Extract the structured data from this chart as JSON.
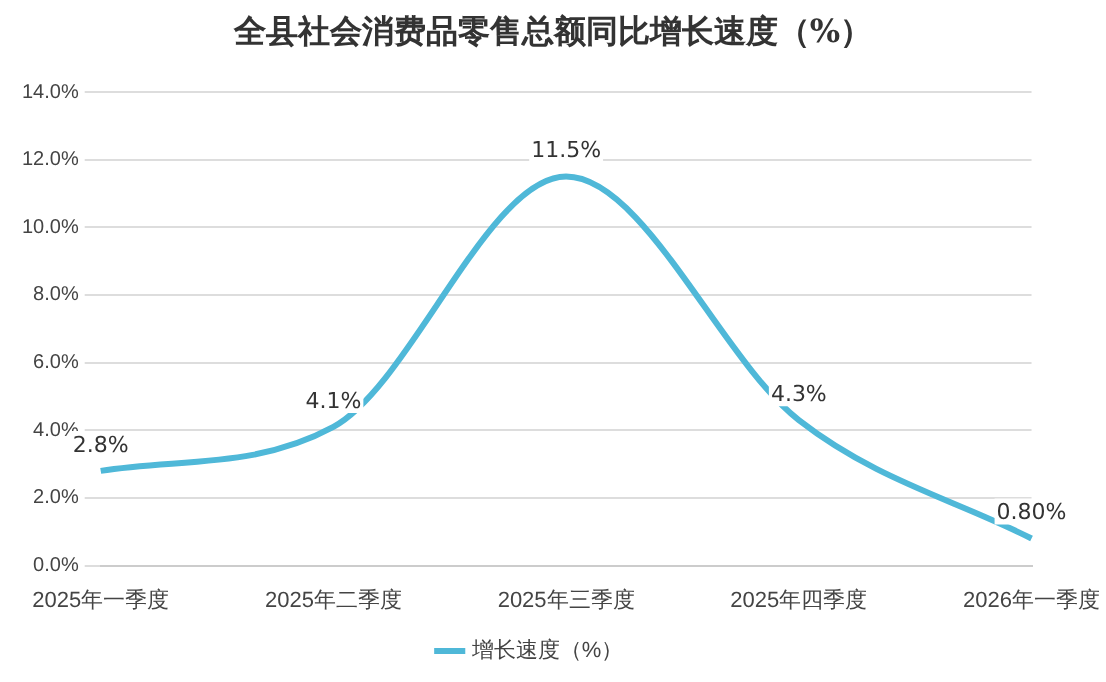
{
  "chart_data": {
    "type": "line",
    "title": "全县社会消费品零售总额同比增长速度（%）",
    "categories": [
      "2025年一季度",
      "2025年二季度",
      "2025年三季度",
      "2025年四季度",
      "2026年一季度"
    ],
    "series": [
      {
        "name": "增长速度（%）",
        "color": "#4fb8d8",
        "values": [
          2.8,
          4.1,
          11.5,
          4.3,
          0.8
        ],
        "value_labels": [
          "2.8%",
          "4.1%",
          "11.5%",
          "4.3%",
          "0.80%"
        ]
      }
    ],
    "ylim": [
      0,
      14
    ],
    "yticks": [
      {
        "value": 0,
        "label": "0.0%"
      },
      {
        "value": 2,
        "label": "2.0%"
      },
      {
        "value": 4,
        "label": "4.0%"
      },
      {
        "value": 6,
        "label": "6.0%"
      },
      {
        "value": 8,
        "label": "8.0%"
      },
      {
        "value": 10,
        "label": "10.0%"
      },
      {
        "value": 12,
        "label": "12.0%"
      },
      {
        "value": 14,
        "label": "14.0%"
      }
    ],
    "grid": "y",
    "legend": "bottom",
    "marker": "none",
    "line_style": "solid"
  }
}
